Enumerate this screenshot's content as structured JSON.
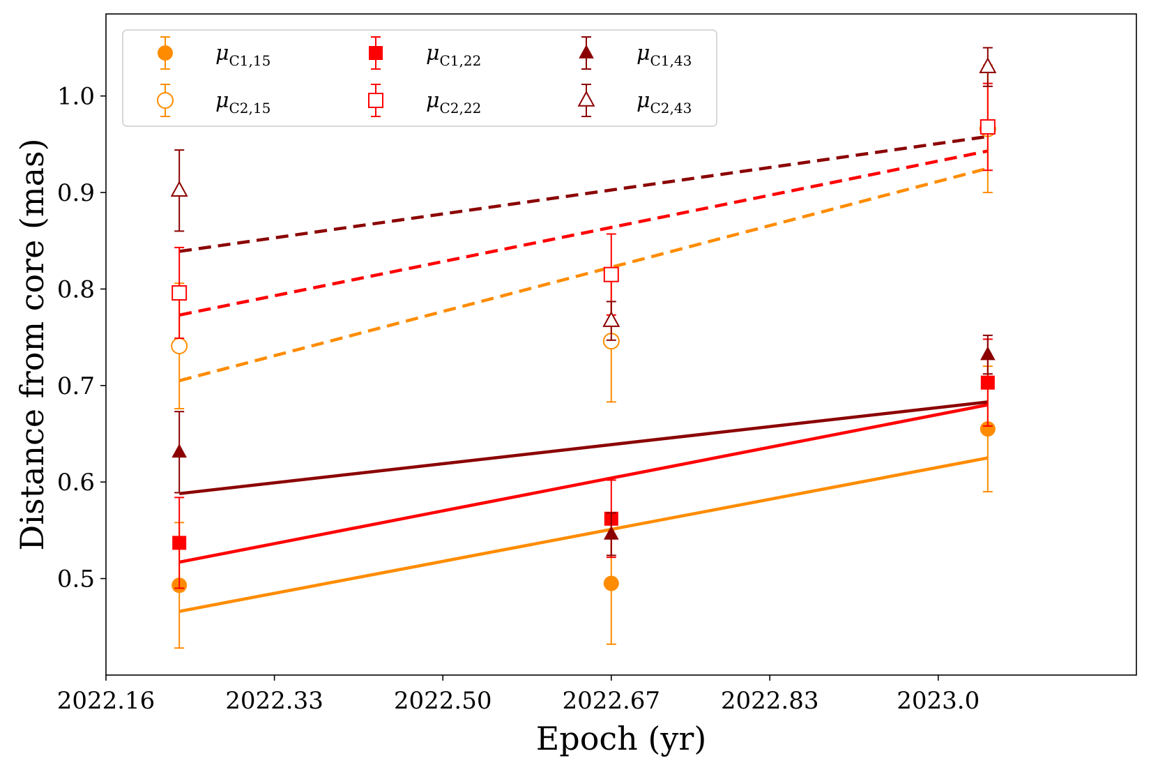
{
  "chart_data": {
    "type": "scatter",
    "xlabel": "Epoch (yr)",
    "ylabel": "Distance from core (mas)",
    "xlim": [
      2022.16,
      2023.2
    ],
    "ylim": [
      0.4,
      1.085
    ],
    "xticks": [
      2022.16,
      2022.33,
      2022.5,
      2022.67,
      2022.83,
      2023.0
    ],
    "xtick_labels": [
      "2022.16",
      "2022.33",
      "2022.50",
      "2022.67",
      "2022.83",
      "2023.0"
    ],
    "yticks": [
      0.5,
      0.6,
      0.7,
      0.8,
      0.9,
      1.0
    ],
    "ytick_labels": [
      "0.5",
      "0.6",
      "0.7",
      "0.8",
      "0.9",
      "1.0"
    ],
    "grid": false,
    "legend_position": "top-left",
    "series": [
      {
        "name": "μC1,15",
        "label_main": "μ",
        "label_sub": "C1,15",
        "color": "#ff8c00",
        "marker": "circle",
        "filled": true,
        "x": [
          2022.234,
          2022.67,
          2023.05
        ],
        "y": [
          0.493,
          0.495,
          0.655
        ],
        "yerr": [
          0.065,
          0.063,
          0.065
        ],
        "fit": {
          "x": [
            2022.234,
            2023.05
          ],
          "y": [
            0.466,
            0.625
          ],
          "style": "solid"
        }
      },
      {
        "name": "μC2,15",
        "label_main": "μ",
        "label_sub": "C2,15",
        "color": "#ff8c00",
        "marker": "circle",
        "filled": false,
        "x": [
          2022.234,
          2022.67,
          2023.05
        ],
        "y": [
          0.741,
          0.746,
          0.966
        ],
        "yerr": [
          0.065,
          0.063,
          0.066
        ],
        "fit": {
          "x": [
            2022.234,
            2023.05
          ],
          "y": [
            0.705,
            0.925
          ],
          "style": "dashed"
        }
      },
      {
        "name": "μC1,22",
        "label_main": "μ",
        "label_sub": "C1,22",
        "color": "#ff0000",
        "marker": "square",
        "filled": true,
        "x": [
          2022.234,
          2022.67,
          2023.05
        ],
        "y": [
          0.537,
          0.562,
          0.703
        ],
        "yerr": [
          0.047,
          0.04,
          0.045
        ],
        "fit": {
          "x": [
            2022.234,
            2023.05
          ],
          "y": [
            0.517,
            0.68
          ],
          "style": "solid"
        }
      },
      {
        "name": "μC2,22",
        "label_main": "μ",
        "label_sub": "C2,22",
        "color": "#ff0000",
        "marker": "square",
        "filled": false,
        "x": [
          2022.234,
          2022.67,
          2023.05
        ],
        "y": [
          0.796,
          0.815,
          0.968
        ],
        "yerr": [
          0.047,
          0.042,
          0.045
        ],
        "fit": {
          "x": [
            2022.234,
            2023.05
          ],
          "y": [
            0.773,
            0.943
          ],
          "style": "dashed"
        }
      },
      {
        "name": "μC1,43",
        "label_main": "μ",
        "label_sub": "C1,43",
        "color": "#8b0000",
        "marker": "triangle",
        "filled": true,
        "x": [
          2022.234,
          2022.67,
          2023.05
        ],
        "y": [
          0.631,
          0.546,
          0.732
        ],
        "yerr": [
          0.042,
          0.022,
          0.02
        ],
        "fit": {
          "x": [
            2022.234,
            2023.05
          ],
          "y": [
            0.588,
            0.683
          ],
          "style": "solid"
        }
      },
      {
        "name": "μC2,43",
        "label_main": "μ",
        "label_sub": "C2,43",
        "color": "#8b0000",
        "marker": "triangle",
        "filled": false,
        "x": [
          2022.234,
          2022.67,
          2023.05
        ],
        "y": [
          0.902,
          0.767,
          1.03
        ],
        "yerr": [
          0.042,
          0.02,
          0.02
        ],
        "fit": {
          "x": [
            2022.234,
            2023.05
          ],
          "y": [
            0.839,
            0.958
          ],
          "style": "dashed"
        }
      }
    ]
  }
}
